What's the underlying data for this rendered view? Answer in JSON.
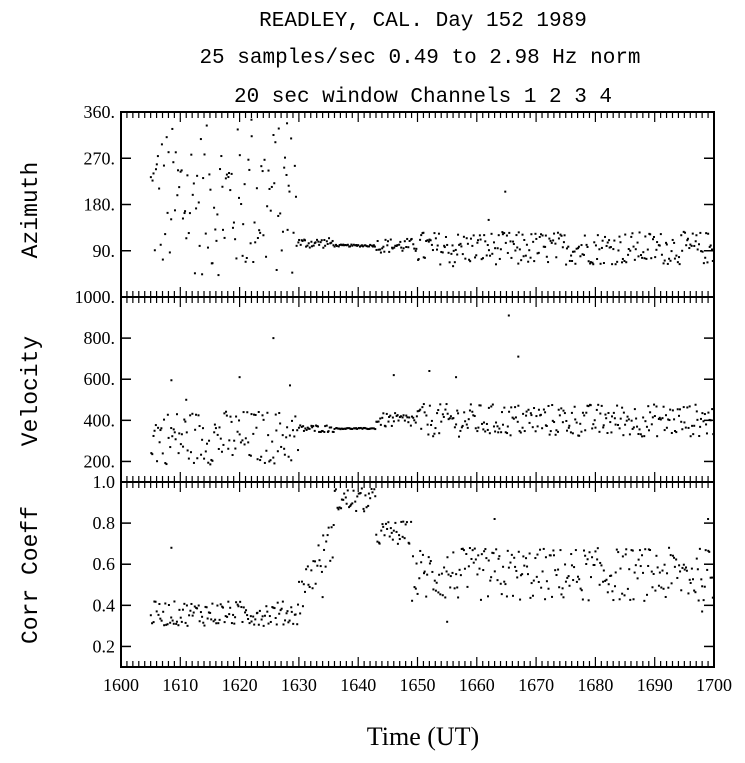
{
  "chart_data": {
    "type": "scatter",
    "title_lines": [
      "READLEY, CAL.  Day 152  1989",
      "25 samples/sec     0.49 to  2.98 Hz    norm",
      "20 sec window    Channels  1  2  3  4"
    ],
    "xlabel": "Time (UT)",
    "xlim": [
      1600,
      1700
    ],
    "xticks": [
      "1600",
      "1610",
      "1620",
      "1630",
      "1640",
      "1650",
      "1660",
      "1670",
      "1680",
      "1690",
      "1700"
    ],
    "grid": false,
    "panels": [
      {
        "name": "azimuth",
        "ylabel": "Azimuth",
        "ylim": [
          0,
          360
        ],
        "yticks": [
          {
            "v": 90,
            "label": "90."
          },
          {
            "v": 180,
            "label": "180."
          },
          {
            "v": 270,
            "label": "270."
          },
          {
            "v": 360,
            "label": "360."
          }
        ],
        "segments": [
          {
            "x0": 1605,
            "x1": 1630,
            "pattern": "scatter",
            "lo": 40,
            "hi": 335
          },
          {
            "x0": 1630,
            "x1": 1636,
            "pattern": "band",
            "base": 105,
            "spread": 10
          },
          {
            "x0": 1636,
            "x1": 1643,
            "pattern": "flat",
            "base": 100,
            "spread": 2
          },
          {
            "x0": 1643,
            "x1": 1650,
            "pattern": "band",
            "base": 100,
            "spread": 14
          },
          {
            "x0": 1650,
            "x1": 1700,
            "pattern": "band",
            "base": 95,
            "spread": 32
          }
        ],
        "outliers": [
          [
            1664.8,
            205
          ],
          [
            1662,
            150
          ],
          [
            1656,
            60
          ],
          [
            1667,
            65
          ],
          [
            1651,
            125
          ],
          [
            1622,
            345
          ],
          [
            1628,
            338
          ]
        ]
      },
      {
        "name": "velocity",
        "ylabel": "Velocity",
        "ylim": [
          100,
          1000
        ],
        "yticks": [
          {
            "v": 200,
            "label": "200."
          },
          {
            "v": 400,
            "label": "400."
          },
          {
            "v": 600,
            "label": "600."
          },
          {
            "v": 800,
            "label": "800."
          },
          {
            "v": 1000,
            "label": "1000."
          }
        ],
        "segments": [
          {
            "x0": 1605,
            "x1": 1630,
            "pattern": "scatter",
            "lo": 185,
            "hi": 450
          },
          {
            "x0": 1630,
            "x1": 1636,
            "pattern": "band",
            "base": 360,
            "spread": 18
          },
          {
            "x0": 1636,
            "x1": 1643,
            "pattern": "flat",
            "base": 360,
            "spread": 3
          },
          {
            "x0": 1643,
            "x1": 1650,
            "pattern": "band",
            "base": 400,
            "spread": 35
          },
          {
            "x0": 1650,
            "x1": 1700,
            "pattern": "band",
            "base": 400,
            "spread": 80
          }
        ],
        "outliers": [
          [
            1625.7,
            800
          ],
          [
            1620,
            610
          ],
          [
            1608.5,
            595
          ],
          [
            1628.5,
            570
          ],
          [
            1646,
            620
          ],
          [
            1652,
            640
          ],
          [
            1656.5,
            610
          ],
          [
            1665.4,
            910
          ],
          [
            1667,
            710
          ],
          [
            1611,
            500
          ]
        ]
      },
      {
        "name": "corr_coeff",
        "ylabel": "Corr Coeff",
        "ylim": [
          0.1,
          1.0
        ],
        "yticks": [
          {
            "v": 0.2,
            "label": "0.2"
          },
          {
            "v": 0.4,
            "label": "0.4"
          },
          {
            "v": 0.6,
            "label": "0.6"
          },
          {
            "v": 0.8,
            "label": "0.8"
          },
          {
            "v": 1.0,
            "label": "1.0"
          }
        ],
        "segments": [
          {
            "x0": 1605,
            "x1": 1630,
            "pattern": "band",
            "base": 0.36,
            "spread": 0.06
          },
          {
            "x0": 1630,
            "x1": 1636,
            "pattern": "ramp",
            "from": 0.45,
            "to": 0.75,
            "spread": 0.1
          },
          {
            "x0": 1636,
            "x1": 1643,
            "pattern": "band",
            "base": 0.91,
            "spread": 0.06
          },
          {
            "x0": 1643,
            "x1": 1649,
            "pattern": "band",
            "base": 0.75,
            "spread": 0.06
          },
          {
            "x0": 1649,
            "x1": 1700,
            "pattern": "band",
            "base": 0.55,
            "spread": 0.13
          }
        ],
        "outliers": [
          [
            1608.5,
            0.68
          ],
          [
            1634,
            0.44
          ],
          [
            1663,
            0.82
          ],
          [
            1699,
            0.82
          ],
          [
            1698,
            0.37
          ],
          [
            1655,
            0.32
          ]
        ]
      }
    ]
  }
}
